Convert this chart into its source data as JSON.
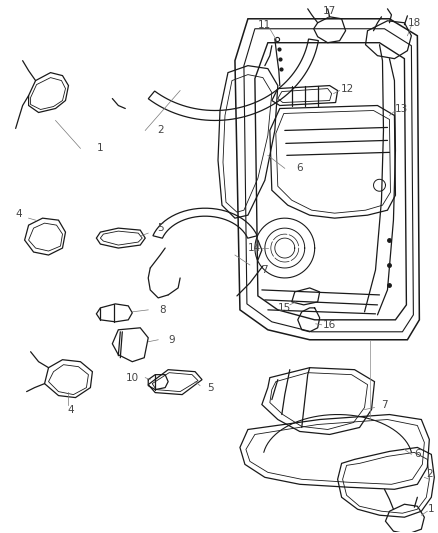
{
  "bg_color": "#ffffff",
  "line_color": "#1a1a1a",
  "label_color": "#555555",
  "fig_width": 4.38,
  "fig_height": 5.33,
  "dpi": 100
}
